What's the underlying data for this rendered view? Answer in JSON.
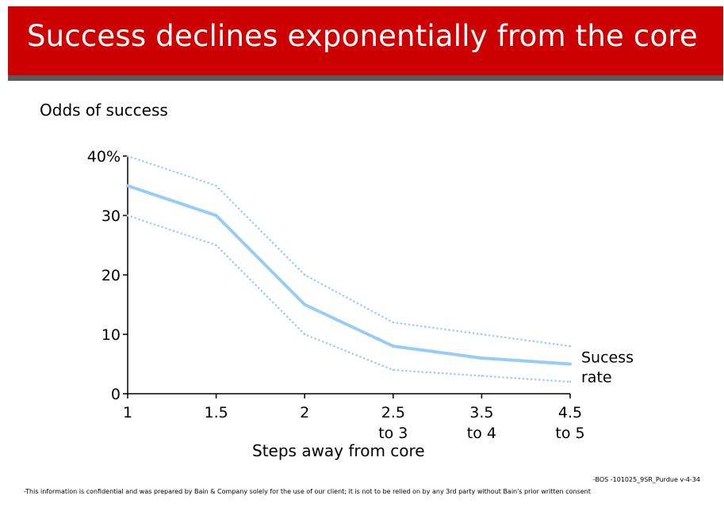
{
  "header": {
    "title": "Success declines exponentially from the core"
  },
  "chart_data": {
    "type": "line",
    "ylabel": "Odds of success",
    "xlabel": "Steps away from core",
    "categories": [
      [
        "1"
      ],
      [
        "1.5"
      ],
      [
        "2"
      ],
      [
        "2.5",
        "to 3"
      ],
      [
        "3.5",
        "to 4"
      ],
      [
        "4.5",
        "to 5"
      ]
    ],
    "y_ticks": [
      "0",
      "10",
      "20",
      "30",
      "40%"
    ],
    "y_tick_values": [
      0,
      10,
      20,
      30,
      40
    ],
    "ylim": [
      0,
      40
    ],
    "series": [
      {
        "name": "Sucess rate",
        "label_lines": [
          "Sucess",
          "rate"
        ],
        "style": "solid",
        "values": [
          35,
          30,
          15,
          8,
          6,
          5
        ]
      },
      {
        "style": "dotted",
        "values": [
          40,
          35,
          20,
          12,
          10,
          8
        ]
      },
      {
        "style": "dotted",
        "values": [
          30,
          25,
          10,
          4,
          3,
          2
        ]
      }
    ],
    "line_color": "#99ccf5",
    "grid": false
  },
  "footer": {
    "code": "-BOS -101025_9SR_Purdue v-4-34",
    "note": "-This information is confidential and was prepared by Bain & Company solely for the use of our client; it is not to be relied on by any 3rd party without Bain's prior written consent"
  }
}
